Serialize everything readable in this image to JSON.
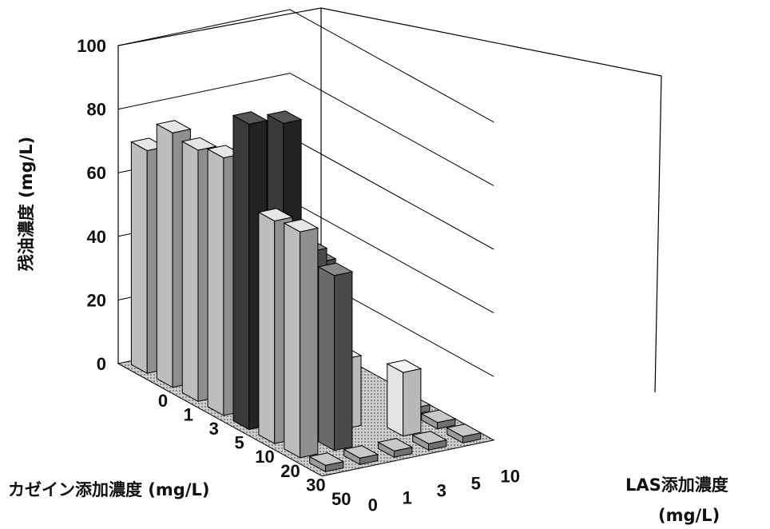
{
  "chart_data": {
    "type": "bar",
    "subtype": "3d-bar",
    "ylabel": "残油濃度 (mg/L)",
    "xlabel": "カゼイン添加濃度 (mg/L)",
    "zlabel_line1": "LAS添加濃度",
    "zlabel_line2": "(mg/L)",
    "ylim": [
      0,
      100
    ],
    "yticks": [
      "0",
      "20",
      "40",
      "60",
      "80",
      "100"
    ],
    "casein_categories": [
      "0",
      "1",
      "3",
      "5",
      "10",
      "20",
      "30",
      "50"
    ],
    "las_categories": [
      "0",
      "1",
      "3",
      "5",
      "10"
    ],
    "series": [
      {
        "las": "0",
        "values": [
          70,
          80,
          79,
          81,
          96,
          70,
          71,
          2
        ]
      },
      {
        "las": "1",
        "values": [
          0,
          0,
          0,
          0,
          94,
          58,
          55,
          2
        ]
      },
      {
        "las": "3",
        "values": [
          0,
          8,
          10,
          34,
          48,
          22,
          0,
          2
        ]
      },
      {
        "las": "5",
        "values": [
          0,
          0,
          0,
          0,
          0,
          0,
          20,
          2
        ]
      },
      {
        "las": "10",
        "values": [
          0,
          0,
          0,
          0,
          0,
          2,
          2,
          2
        ]
      }
    ],
    "colors": {
      "dark": "#2b2b2b",
      "medium": "#5a5a5a",
      "light": "#9a9a9a",
      "pale": "#dddddd",
      "floor": "#bcbcbc",
      "grid": "#000000"
    },
    "grid": true
  }
}
